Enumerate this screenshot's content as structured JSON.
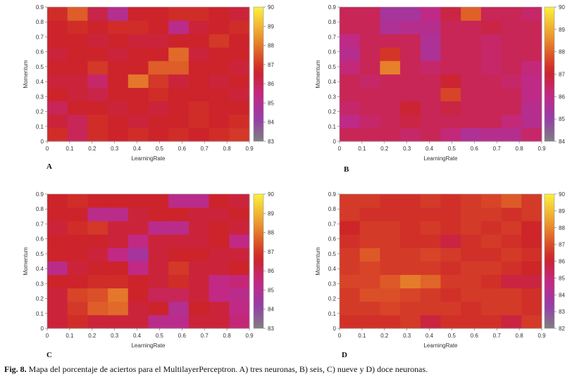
{
  "caption": {
    "label": "Fig. 8.",
    "text": "Mapa del porcentaje de aciertos para el MultilayerPerceptron. A) tres neuronas, B) seis, C) nueve y D) doce neuronas."
  },
  "chart_data": [
    {
      "type": "heatmap",
      "panel": "A",
      "xlabel": "LearningRate",
      "ylabel": "Momentum",
      "x_ticks": [
        "0",
        "0.1",
        "0.2",
        "0.3",
        "0.4",
        "0.5",
        "0.6",
        "0.7",
        "0.8",
        "0.9"
      ],
      "y_ticks": [
        "0",
        "0.1",
        "0.2",
        "0.3",
        "0.4",
        "0.5",
        "0.6",
        "0.7",
        "0.8",
        "0.9"
      ],
      "colorbar": {
        "min": 83,
        "max": 90,
        "ticks": [
          "83",
          "84",
          "85",
          "86",
          "87",
          "88",
          "89",
          "90"
        ]
      },
      "z": [
        [
          86.8,
          86.0,
          86.8,
          86.6,
          86.8,
          86.6,
          86.8,
          86.6,
          86.8,
          87.0
        ],
        [
          86.4,
          86.0,
          86.8,
          86.6,
          86.4,
          86.6,
          86.6,
          86.8,
          86.6,
          86.8
        ],
        [
          86.0,
          86.6,
          86.6,
          86.4,
          86.6,
          86.4,
          86.6,
          86.8,
          86.6,
          86.6
        ],
        [
          86.6,
          86.4,
          86.2,
          86.6,
          86.6,
          86.8,
          86.6,
          86.6,
          86.6,
          86.4
        ],
        [
          86.4,
          86.4,
          85.8,
          86.6,
          88.0,
          87.0,
          86.4,
          86.6,
          86.4,
          86.6
        ],
        [
          86.6,
          86.6,
          87.0,
          86.6,
          86.6,
          87.6,
          87.6,
          86.6,
          86.6,
          86.4
        ],
        [
          86.4,
          86.6,
          86.6,
          86.4,
          86.6,
          86.6,
          87.8,
          86.4,
          86.6,
          86.6
        ],
        [
          86.6,
          86.6,
          86.4,
          86.6,
          86.4,
          86.4,
          86.6,
          86.6,
          87.0,
          86.6
        ],
        [
          86.6,
          86.8,
          86.6,
          86.8,
          86.8,
          86.6,
          85.2,
          86.4,
          86.6,
          86.8
        ],
        [
          86.8,
          87.6,
          86.2,
          85.0,
          86.6,
          86.6,
          86.8,
          86.8,
          86.6,
          86.4
        ]
      ]
    },
    {
      "type": "heatmap",
      "panel": "B",
      "xlabel": "LearningRate",
      "ylabel": "Momentum",
      "x_ticks": [
        "0",
        "0.1",
        "0.2",
        "0.3",
        "0.4",
        "0.5",
        "0.6",
        "0.7",
        "0.8",
        "0.9"
      ],
      "y_ticks": [
        "0",
        "0.1",
        "0.2",
        "0.3",
        "0.4",
        "0.5",
        "0.6",
        "0.7",
        "0.8",
        "0.9"
      ],
      "colorbar": {
        "min": 84,
        "max": 90,
        "ticks": [
          "84",
          "85",
          "86",
          "87",
          "88",
          "89",
          "90"
        ]
      },
      "z": [
        [
          86.6,
          86.6,
          86.6,
          86.4,
          86.6,
          86.2,
          85.6,
          85.8,
          85.8,
          86.4
        ],
        [
          86.0,
          86.4,
          86.6,
          86.8,
          86.6,
          86.6,
          86.6,
          86.6,
          86.2,
          85.8
        ],
        [
          86.4,
          86.6,
          86.6,
          87.0,
          86.6,
          86.8,
          86.6,
          86.6,
          86.6,
          85.8
        ],
        [
          86.6,
          86.6,
          86.6,
          86.6,
          86.6,
          87.6,
          86.6,
          86.6,
          86.6,
          86.0
        ],
        [
          86.6,
          86.4,
          86.6,
          86.6,
          86.6,
          87.0,
          86.6,
          86.6,
          86.4,
          86.0
        ],
        [
          86.2,
          86.6,
          88.4,
          86.6,
          86.4,
          86.6,
          86.6,
          86.4,
          86.6,
          86.2
        ],
        [
          85.8,
          86.6,
          87.4,
          86.6,
          85.6,
          86.6,
          86.6,
          86.4,
          86.6,
          86.6
        ],
        [
          86.0,
          86.6,
          86.6,
          86.6,
          85.6,
          86.6,
          86.6,
          86.4,
          86.6,
          86.6
        ],
        [
          86.6,
          86.6,
          85.6,
          85.8,
          85.8,
          86.6,
          86.6,
          86.8,
          86.6,
          86.6
        ],
        [
          86.6,
          86.6,
          85.4,
          85.4,
          86.0,
          86.8,
          88.0,
          86.6,
          86.6,
          86.4
        ]
      ]
    },
    {
      "type": "heatmap",
      "panel": "C",
      "xlabel": "LearningRate",
      "ylabel": "Momentum",
      "x_ticks": [
        "0",
        "0.1",
        "0.2",
        "0.3",
        "0.4",
        "0.5",
        "0.6",
        "0.7",
        "0.8",
        "0.9"
      ],
      "y_ticks": [
        "0",
        "0.1",
        "0.2",
        "0.3",
        "0.4",
        "0.5",
        "0.6",
        "0.7",
        "0.8",
        "0.9"
      ],
      "colorbar": {
        "min": 83,
        "max": 90,
        "ticks": [
          "83",
          "84",
          "85",
          "86",
          "87",
          "88",
          "89",
          "90"
        ]
      },
      "z": [
        [
          86.4,
          86.8,
          86.4,
          86.4,
          86.4,
          85.2,
          85.2,
          86.4,
          86.4,
          85.6
        ],
        [
          86.4,
          87.0,
          87.6,
          87.8,
          86.4,
          86.6,
          85.0,
          86.6,
          86.4,
          85.4
        ],
        [
          86.4,
          87.2,
          87.4,
          88.0,
          86.6,
          86.0,
          86.0,
          86.4,
          85.4,
          85.2
        ],
        [
          86.6,
          86.6,
          86.8,
          86.8,
          86.6,
          86.4,
          86.8,
          86.4,
          85.4,
          85.6
        ],
        [
          85.2,
          86.4,
          86.6,
          86.6,
          85.4,
          86.4,
          87.0,
          86.4,
          86.4,
          86.6
        ],
        [
          86.6,
          86.6,
          86.4,
          85.4,
          84.6,
          86.4,
          86.6,
          86.6,
          86.4,
          86.4
        ],
        [
          86.6,
          86.6,
          86.6,
          86.4,
          85.4,
          86.4,
          86.4,
          86.4,
          86.6,
          85.4
        ],
        [
          86.4,
          86.8,
          87.0,
          86.4,
          86.4,
          85.2,
          85.2,
          86.4,
          86.6,
          86.4
        ],
        [
          86.6,
          86.6,
          85.2,
          85.2,
          86.4,
          86.6,
          86.6,
          86.4,
          86.4,
          86.6
        ],
        [
          86.6,
          86.8,
          86.6,
          86.6,
          86.6,
          86.6,
          85.2,
          85.2,
          86.6,
          86.4
        ]
      ]
    },
    {
      "type": "heatmap",
      "panel": "D",
      "xlabel": "LearningRate",
      "ylabel": "Momentum",
      "x_ticks": [
        "0",
        "0.1",
        "0.2",
        "0.3",
        "0.4",
        "0.5",
        "0.6",
        "0.7",
        "0.8",
        "0.9"
      ],
      "y_ticks": [
        "0",
        "0.1",
        "0.2",
        "0.3",
        "0.4",
        "0.5",
        "0.6",
        "0.7",
        "0.8",
        "0.9"
      ],
      "colorbar": {
        "min": 82,
        "max": 90,
        "ticks": [
          "82",
          "83",
          "84",
          "85",
          "86",
          "87",
          "88",
          "89",
          "90"
        ]
      },
      "z": [
        [
          86.4,
          86.4,
          86.4,
          86.6,
          85.8,
          86.4,
          86.4,
          86.4,
          85.8,
          86.6
        ],
        [
          86.6,
          86.6,
          86.8,
          86.6,
          86.6,
          86.6,
          86.4,
          86.6,
          86.6,
          86.4
        ],
        [
          86.6,
          87.0,
          87.0,
          86.8,
          86.6,
          86.4,
          86.6,
          86.6,
          86.6,
          86.4
        ],
        [
          86.8,
          86.8,
          87.2,
          87.8,
          87.4,
          86.6,
          86.6,
          86.4,
          85.8,
          85.8
        ],
        [
          86.6,
          86.8,
          86.6,
          86.6,
          86.6,
          86.4,
          86.6,
          86.6,
          86.4,
          86.2
        ],
        [
          86.6,
          87.2,
          86.6,
          86.6,
          86.8,
          86.6,
          86.4,
          86.4,
          86.6,
          86.4
        ],
        [
          86.4,
          86.6,
          86.6,
          86.4,
          86.4,
          85.8,
          86.4,
          86.6,
          86.4,
          86.2
        ],
        [
          86.2,
          86.6,
          86.6,
          86.4,
          86.6,
          86.4,
          86.6,
          86.4,
          86.6,
          86.2
        ],
        [
          86.6,
          86.4,
          86.4,
          86.4,
          86.4,
          86.4,
          86.6,
          86.6,
          86.4,
          86.6
        ],
        [
          86.6,
          86.6,
          86.4,
          86.4,
          86.6,
          86.4,
          86.6,
          86.8,
          87.2,
          86.6
        ]
      ]
    }
  ]
}
